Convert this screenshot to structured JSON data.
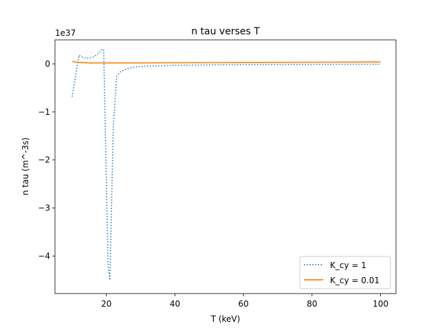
{
  "chart_data": {
    "type": "line",
    "title": "n tau verses T",
    "xlabel": "T (keV)",
    "ylabel": "n tau (m^-3s)",
    "y_scale_label": "1e37",
    "y_multiplier": 1e+37,
    "xlim": [
      5,
      104.5
    ],
    "ylim": [
      -4.78,
      0.5
    ],
    "x_ticks": [
      20,
      40,
      60,
      80,
      100
    ],
    "y_ticks": [
      0,
      -1,
      -2,
      -3,
      -4
    ],
    "grid": false,
    "legend_position": "lower-right",
    "series": [
      {
        "name": "K_cy = 1",
        "style": "dotted",
        "color": "#1f77b4",
        "x": [
          10,
          12,
          13,
          14,
          15,
          16,
          17,
          18,
          18.7,
          19.2,
          20,
          20.5,
          21,
          21.3,
          22,
          23,
          24,
          26,
          28,
          30,
          35,
          40,
          50,
          60,
          70,
          80,
          90,
          100
        ],
        "values": [
          -0.68,
          0.18,
          0.14,
          0.12,
          0.12,
          0.14,
          0.18,
          0.25,
          0.3,
          0.3,
          -2.5,
          -4.2,
          -4.5,
          -3.6,
          -1.3,
          -0.26,
          -0.17,
          -0.1,
          -0.07,
          -0.05,
          -0.04,
          -0.03,
          -0.02,
          -0.015,
          -0.012,
          -0.01,
          -0.008,
          -0.006
        ]
      },
      {
        "name": "K_cy = 0.01",
        "style": "solid",
        "color": "#ff7f0e",
        "x": [
          10,
          12,
          15,
          20,
          25,
          30,
          40,
          50,
          60,
          70,
          80,
          90,
          100
        ],
        "values": [
          0.05,
          0.03,
          0.02,
          0.02,
          0.02,
          0.02,
          0.023,
          0.026,
          0.029,
          0.032,
          0.035,
          0.038,
          0.041
        ]
      }
    ]
  }
}
